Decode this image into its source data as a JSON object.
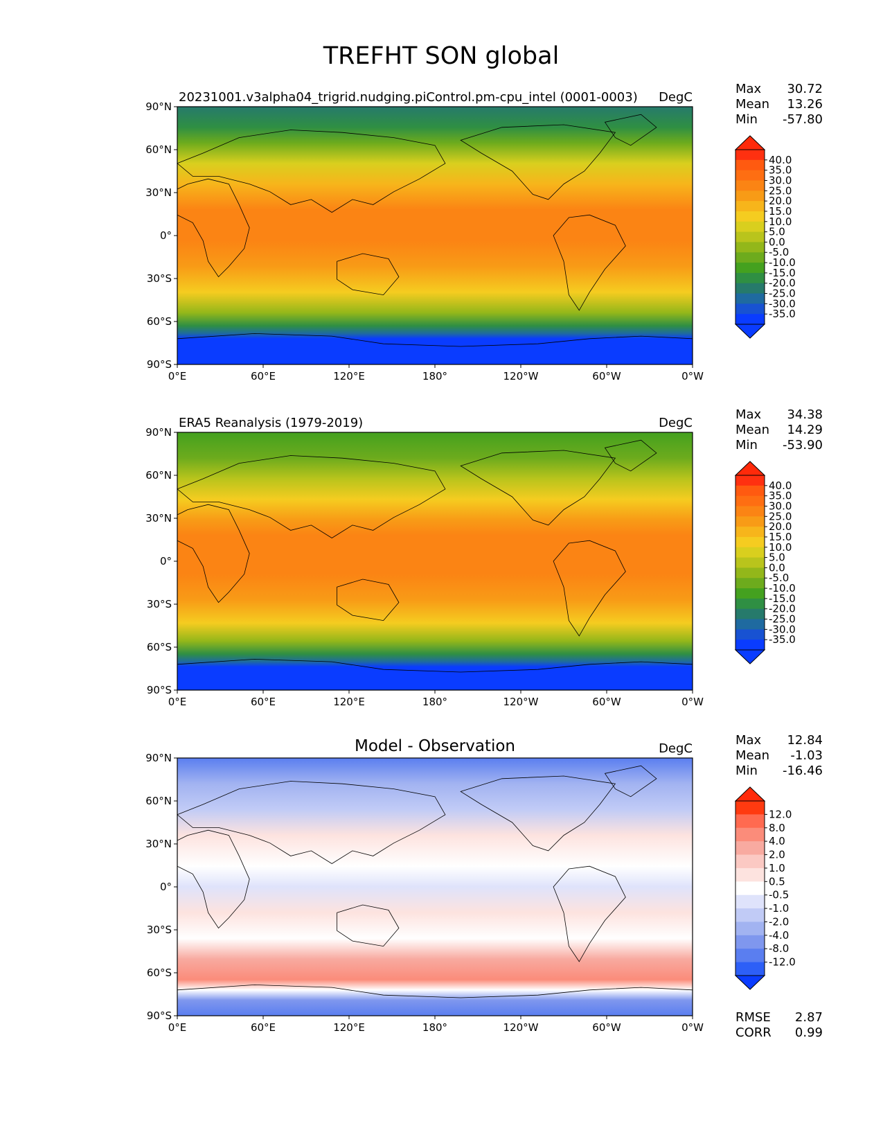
{
  "figure": {
    "title": "TREFHT SON global"
  },
  "axes": {
    "lat_ticks": [
      "90°N",
      "60°N",
      "30°N",
      "0°",
      "30°S",
      "60°S",
      "90°S"
    ],
    "lon_ticks": [
      "0°E",
      "60°E",
      "120°E",
      "180°",
      "120°W",
      "60°W",
      "0°W"
    ]
  },
  "panels": [
    {
      "id": "model",
      "left_title": "20231001.v3alpha04_trigrid.nudging.piControl.pm-cpu_intel (0001-0003)",
      "center_title": "",
      "units": "DegC",
      "stats": [
        {
          "label": "Max",
          "value": "30.72"
        },
        {
          "label": "Mean",
          "value": "13.26"
        },
        {
          "label": "Min",
          "value": "-57.80"
        }
      ],
      "colorbar": {
        "labels": [
          "40.0",
          "35.0",
          "30.0",
          "25.0",
          "20.0",
          "15.0",
          "10.0",
          "5.0",
          "0.0",
          "-5.0",
          "-10.0",
          "-15.0",
          "-20.0",
          "-25.0",
          "-30.0",
          "-35.0"
        ],
        "colors": [
          "#ff3010",
          "#ff5a10",
          "#fe6e12",
          "#fb8414",
          "#f89b16",
          "#f7b51b",
          "#f5cc20",
          "#d9cf1e",
          "#b9c41c",
          "#93b71a",
          "#6dab1d",
          "#44a11f",
          "#2f8f43",
          "#267a6b",
          "#1f6aa0",
          "#1852d2",
          "#0a3cff"
        ],
        "extend_top": "#ff2a0a",
        "extend_bottom": "#0a3cff"
      },
      "extra_stats": []
    },
    {
      "id": "obs",
      "left_title": "ERA5 Reanalysis (1979-2019)",
      "center_title": "",
      "units": "DegC",
      "stats": [
        {
          "label": "Max",
          "value": "34.38"
        },
        {
          "label": "Mean",
          "value": "14.29"
        },
        {
          "label": "Min",
          "value": "-53.90"
        }
      ],
      "colorbar": {
        "labels": [
          "40.0",
          "35.0",
          "30.0",
          "25.0",
          "20.0",
          "15.0",
          "10.0",
          "5.0",
          "0.0",
          "-5.0",
          "-10.0",
          "-15.0",
          "-20.0",
          "-25.0",
          "-30.0",
          "-35.0"
        ],
        "colors": [
          "#ff3010",
          "#ff5a10",
          "#fe6e12",
          "#fb8414",
          "#f89b16",
          "#f7b51b",
          "#f5cc20",
          "#d9cf1e",
          "#b9c41c",
          "#93b71a",
          "#6dab1d",
          "#44a11f",
          "#2f8f43",
          "#267a6b",
          "#1f6aa0",
          "#1852d2",
          "#0a3cff"
        ],
        "extend_top": "#ff2a0a",
        "extend_bottom": "#0a3cff"
      },
      "extra_stats": []
    },
    {
      "id": "diff",
      "left_title": "",
      "center_title": "Model - Observation",
      "units": "DegC",
      "stats": [
        {
          "label": "Max",
          "value": "12.84"
        },
        {
          "label": "Mean",
          "value": "-1.03"
        },
        {
          "label": "Min",
          "value": "-16.46"
        }
      ],
      "colorbar": {
        "labels": [
          "12.0",
          "8.0",
          "4.0",
          "2.0",
          "1.0",
          "0.5",
          "-0.5",
          "-1.0",
          "-2.0",
          "-4.0",
          "-8.0",
          "-12.0"
        ],
        "colors": [
          "#ff3a10",
          "#ff6a50",
          "#fb8c7a",
          "#f8aaa0",
          "#fbc9c3",
          "#fde3df",
          "#ffffff",
          "#dfe3fb",
          "#c1cbf6",
          "#a2b3f1",
          "#7f97ee",
          "#5a7ef0",
          "#2d5ff7"
        ],
        "extend_top": "#ff2a0a",
        "extend_bottom": "#0a3cff"
      },
      "extra_stats": [
        {
          "label": "RMSE",
          "value": "2.87"
        },
        {
          "label": "CORR",
          "value": "0.99"
        }
      ]
    }
  ]
}
